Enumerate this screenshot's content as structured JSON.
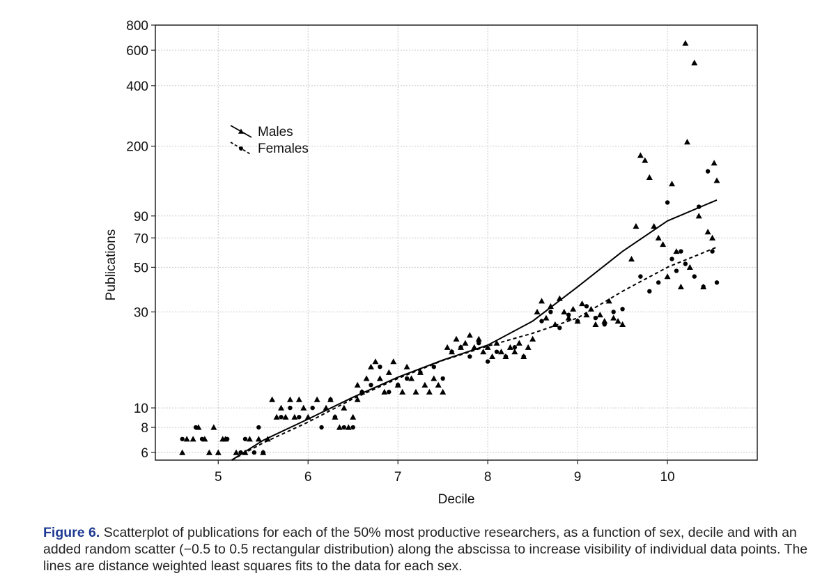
{
  "chart_data": {
    "type": "scatter",
    "xlabel": "Decile",
    "ylabel": "Publications",
    "xlim": [
      4.3,
      11.0
    ],
    "ylim": [
      5.5,
      800
    ],
    "y_scale": "log",
    "grid": true,
    "x_ticks": [
      5,
      6,
      7,
      8,
      9,
      10
    ],
    "y_ticks": [
      6,
      8,
      10,
      30,
      50,
      70,
      90,
      200,
      400,
      600,
      800
    ],
    "legend_placement": "upper-left",
    "series": [
      {
        "name": "Males",
        "marker": "triangle",
        "line_style": "solid",
        "fit_line": [
          [
            5.15,
            5.5
          ],
          [
            5.5,
            6.9
          ],
          [
            6.0,
            8.8
          ],
          [
            6.5,
            11.3
          ],
          [
            7.0,
            14.2
          ],
          [
            7.5,
            17.3
          ],
          [
            8.0,
            20.5
          ],
          [
            8.5,
            27
          ],
          [
            9.0,
            40
          ],
          [
            9.5,
            60
          ],
          [
            10.0,
            85
          ],
          [
            10.55,
            108
          ]
        ],
        "points": [
          [
            4.6,
            6
          ],
          [
            4.65,
            7
          ],
          [
            4.72,
            7
          ],
          [
            4.78,
            8
          ],
          [
            4.85,
            7
          ],
          [
            4.9,
            6
          ],
          [
            4.95,
            8
          ],
          [
            5.0,
            6
          ],
          [
            5.05,
            7
          ],
          [
            5.08,
            7
          ],
          [
            5.2,
            6
          ],
          [
            5.3,
            6
          ],
          [
            5.35,
            7
          ],
          [
            5.45,
            7
          ],
          [
            5.5,
            6
          ],
          [
            5.55,
            7
          ],
          [
            5.6,
            11
          ],
          [
            5.65,
            9
          ],
          [
            5.7,
            10
          ],
          [
            5.75,
            9
          ],
          [
            5.8,
            11
          ],
          [
            5.85,
            9
          ],
          [
            5.9,
            11
          ],
          [
            5.95,
            10
          ],
          [
            6.0,
            9
          ],
          [
            6.1,
            11
          ],
          [
            6.2,
            10
          ],
          [
            6.25,
            11
          ],
          [
            6.3,
            9
          ],
          [
            6.35,
            8
          ],
          [
            6.4,
            10
          ],
          [
            6.45,
            8
          ],
          [
            6.5,
            9
          ],
          [
            6.55,
            11
          ],
          [
            6.55,
            13
          ],
          [
            6.6,
            12
          ],
          [
            6.65,
            14
          ],
          [
            6.7,
            16
          ],
          [
            6.75,
            17
          ],
          [
            6.8,
            14
          ],
          [
            6.85,
            12
          ],
          [
            6.9,
            15
          ],
          [
            6.95,
            17
          ],
          [
            7.0,
            13
          ],
          [
            7.05,
            12
          ],
          [
            7.1,
            16
          ],
          [
            7.15,
            14
          ],
          [
            7.2,
            12
          ],
          [
            7.25,
            15
          ],
          [
            7.3,
            13
          ],
          [
            7.35,
            12
          ],
          [
            7.4,
            14
          ],
          [
            7.45,
            13
          ],
          [
            7.5,
            12
          ],
          [
            7.55,
            20
          ],
          [
            7.6,
            19
          ],
          [
            7.65,
            22
          ],
          [
            7.7,
            20
          ],
          [
            7.75,
            21
          ],
          [
            7.8,
            23
          ],
          [
            7.85,
            20
          ],
          [
            7.9,
            22
          ],
          [
            7.95,
            19
          ],
          [
            8.0,
            20
          ],
          [
            8.05,
            18
          ],
          [
            8.1,
            21
          ],
          [
            8.15,
            19
          ],
          [
            8.2,
            18
          ],
          [
            8.25,
            20
          ],
          [
            8.3,
            19
          ],
          [
            8.35,
            21
          ],
          [
            8.4,
            18
          ],
          [
            8.45,
            20
          ],
          [
            8.5,
            22
          ],
          [
            8.55,
            30
          ],
          [
            8.6,
            34
          ],
          [
            8.65,
            28
          ],
          [
            8.7,
            32
          ],
          [
            8.75,
            26
          ],
          [
            8.8,
            35
          ],
          [
            8.85,
            30
          ],
          [
            8.9,
            28
          ],
          [
            8.95,
            31
          ],
          [
            9.0,
            27
          ],
          [
            9.05,
            33
          ],
          [
            9.1,
            29
          ],
          [
            9.15,
            31
          ],
          [
            9.2,
            26
          ],
          [
            9.25,
            29
          ],
          [
            9.3,
            27
          ],
          [
            9.35,
            34
          ],
          [
            9.4,
            28
          ],
          [
            9.45,
            27
          ],
          [
            9.5,
            26
          ],
          [
            9.6,
            55
          ],
          [
            9.65,
            80
          ],
          [
            9.7,
            180
          ],
          [
            9.75,
            170
          ],
          [
            9.8,
            140
          ],
          [
            9.85,
            80
          ],
          [
            9.9,
            70
          ],
          [
            9.95,
            65
          ],
          [
            10.0,
            45
          ],
          [
            10.05,
            130
          ],
          [
            10.1,
            60
          ],
          [
            10.15,
            40
          ],
          [
            10.2,
            650
          ],
          [
            10.22,
            210
          ],
          [
            10.25,
            50
          ],
          [
            10.3,
            520
          ],
          [
            10.35,
            90
          ],
          [
            10.4,
            40
          ],
          [
            10.45,
            75
          ],
          [
            10.5,
            70
          ],
          [
            10.52,
            165
          ],
          [
            10.55,
            135
          ]
        ]
      },
      {
        "name": "Females",
        "marker": "circle",
        "line_style": "dashed",
        "fit_line": [
          [
            5.15,
            5.5
          ],
          [
            5.5,
            6.7
          ],
          [
            6.0,
            8.5
          ],
          [
            6.5,
            11.1
          ],
          [
            7.0,
            14.0
          ],
          [
            7.5,
            17.2
          ],
          [
            8.0,
            20.3
          ],
          [
            8.5,
            23.5
          ],
          [
            9.0,
            28
          ],
          [
            9.5,
            38
          ],
          [
            10.0,
            50
          ],
          [
            10.55,
            63
          ]
        ],
        "points": [
          [
            4.6,
            7
          ],
          [
            4.75,
            8
          ],
          [
            4.82,
            7
          ],
          [
            5.1,
            7
          ],
          [
            5.25,
            6
          ],
          [
            5.3,
            7
          ],
          [
            5.4,
            6
          ],
          [
            5.45,
            8
          ],
          [
            5.5,
            6
          ],
          [
            5.7,
            9
          ],
          [
            5.8,
            10
          ],
          [
            5.9,
            9
          ],
          [
            6.05,
            10
          ],
          [
            6.15,
            8
          ],
          [
            6.25,
            11
          ],
          [
            6.3,
            9
          ],
          [
            6.4,
            8
          ],
          [
            6.5,
            8
          ],
          [
            6.6,
            12
          ],
          [
            6.7,
            13
          ],
          [
            6.8,
            16
          ],
          [
            6.9,
            12
          ],
          [
            7.0,
            13
          ],
          [
            7.1,
            14
          ],
          [
            7.25,
            15
          ],
          [
            7.4,
            16
          ],
          [
            7.5,
            14
          ],
          [
            7.6,
            19
          ],
          [
            7.7,
            20
          ],
          [
            7.8,
            18
          ],
          [
            7.9,
            21
          ],
          [
            8.0,
            17
          ],
          [
            8.1,
            19
          ],
          [
            8.2,
            18
          ],
          [
            8.3,
            20
          ],
          [
            8.4,
            18
          ],
          [
            8.6,
            27
          ],
          [
            8.7,
            30
          ],
          [
            8.8,
            25
          ],
          [
            8.9,
            29
          ],
          [
            9.0,
            27
          ],
          [
            9.1,
            32
          ],
          [
            9.2,
            28
          ],
          [
            9.3,
            26
          ],
          [
            9.4,
            30
          ],
          [
            9.5,
            31
          ],
          [
            9.7,
            45
          ],
          [
            9.8,
            38
          ],
          [
            9.9,
            42
          ],
          [
            10.0,
            105
          ],
          [
            10.05,
            55
          ],
          [
            10.1,
            48
          ],
          [
            10.15,
            60
          ],
          [
            10.2,
            52
          ],
          [
            10.3,
            45
          ],
          [
            10.35,
            100
          ],
          [
            10.4,
            40
          ],
          [
            10.45,
            150
          ],
          [
            10.5,
            60
          ],
          [
            10.55,
            42
          ]
        ]
      }
    ]
  },
  "caption": {
    "label": "Figure 6.",
    "text": "Scatterplot of publications for each of the 50% most productive researchers, as a function of sex, decile and with an added random scatter (−0.5 to 0.5 rectangular distribution) along the abscissa to increase visibility of individual data points. The lines are distance weighted least squares fits to the data for each sex."
  }
}
